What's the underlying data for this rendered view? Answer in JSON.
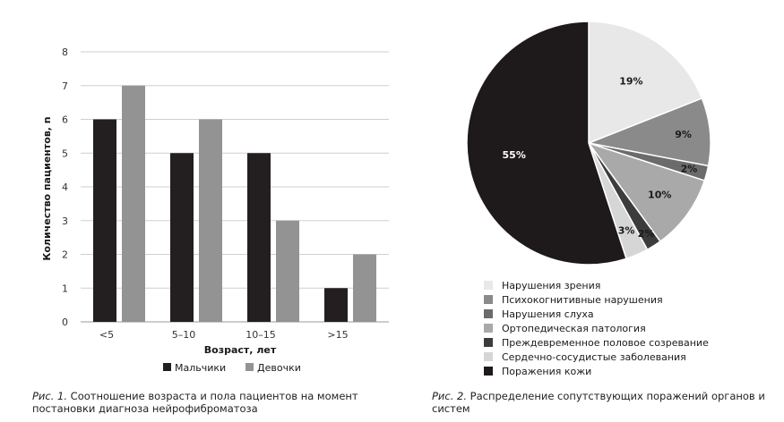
{
  "chart_data": [
    {
      "type": "bar",
      "categories": [
        "<5",
        "5–10",
        "10–15",
        ">15"
      ],
      "series": [
        {
          "name": "Мальчики",
          "color": "#231f20",
          "values": [
            6,
            5,
            5,
            1
          ]
        },
        {
          "name": "Девочки",
          "color": "#939393",
          "values": [
            7,
            6,
            3,
            2
          ]
        }
      ],
      "xlabel": "Возраст, лет",
      "ylabel": "Количество пациентов, n",
      "ylim": [
        0,
        8
      ],
      "yticks": [
        0,
        1,
        2,
        3,
        4,
        5,
        6,
        7,
        8
      ],
      "grid": true,
      "legend": "bottom"
    },
    {
      "type": "pie",
      "slices": [
        {
          "label": "Нарушения зрения",
          "value": 19,
          "display": "19%",
          "color": "#e8e8e8"
        },
        {
          "label": "Психокогнитивные нарушения",
          "value": 9,
          "display": "9%",
          "color": "#8a8a8a"
        },
        {
          "label": "Нарушения слуха",
          "value": 2,
          "display": "2%",
          "color": "#6b6b6b"
        },
        {
          "label": "Ортопедическая патология",
          "value": 10,
          "display": "10%",
          "color": "#a9a9a9"
        },
        {
          "label": "Преждевременное половое созревание",
          "value": 2,
          "display": "2%",
          "color": "#3c3c3c"
        },
        {
          "label": "Сердечно-сосудистые заболевания",
          "value": 3,
          "display": "3%",
          "color": "#d6d6d6"
        },
        {
          "label": "Поражения кожи",
          "value": 55,
          "display": "55%",
          "color": "#1e1a1b"
        }
      ],
      "legend": "bottom"
    }
  ],
  "captions": {
    "fig1_label": "Рис. 1.",
    "fig1_text": "Соотношение возраста и пола пациентов на момент постановки диагноза нейрофиброматоза",
    "fig2_label": "Рис. 2.",
    "fig2_text": "Распределение сопутствующих поражений органов и систем"
  }
}
